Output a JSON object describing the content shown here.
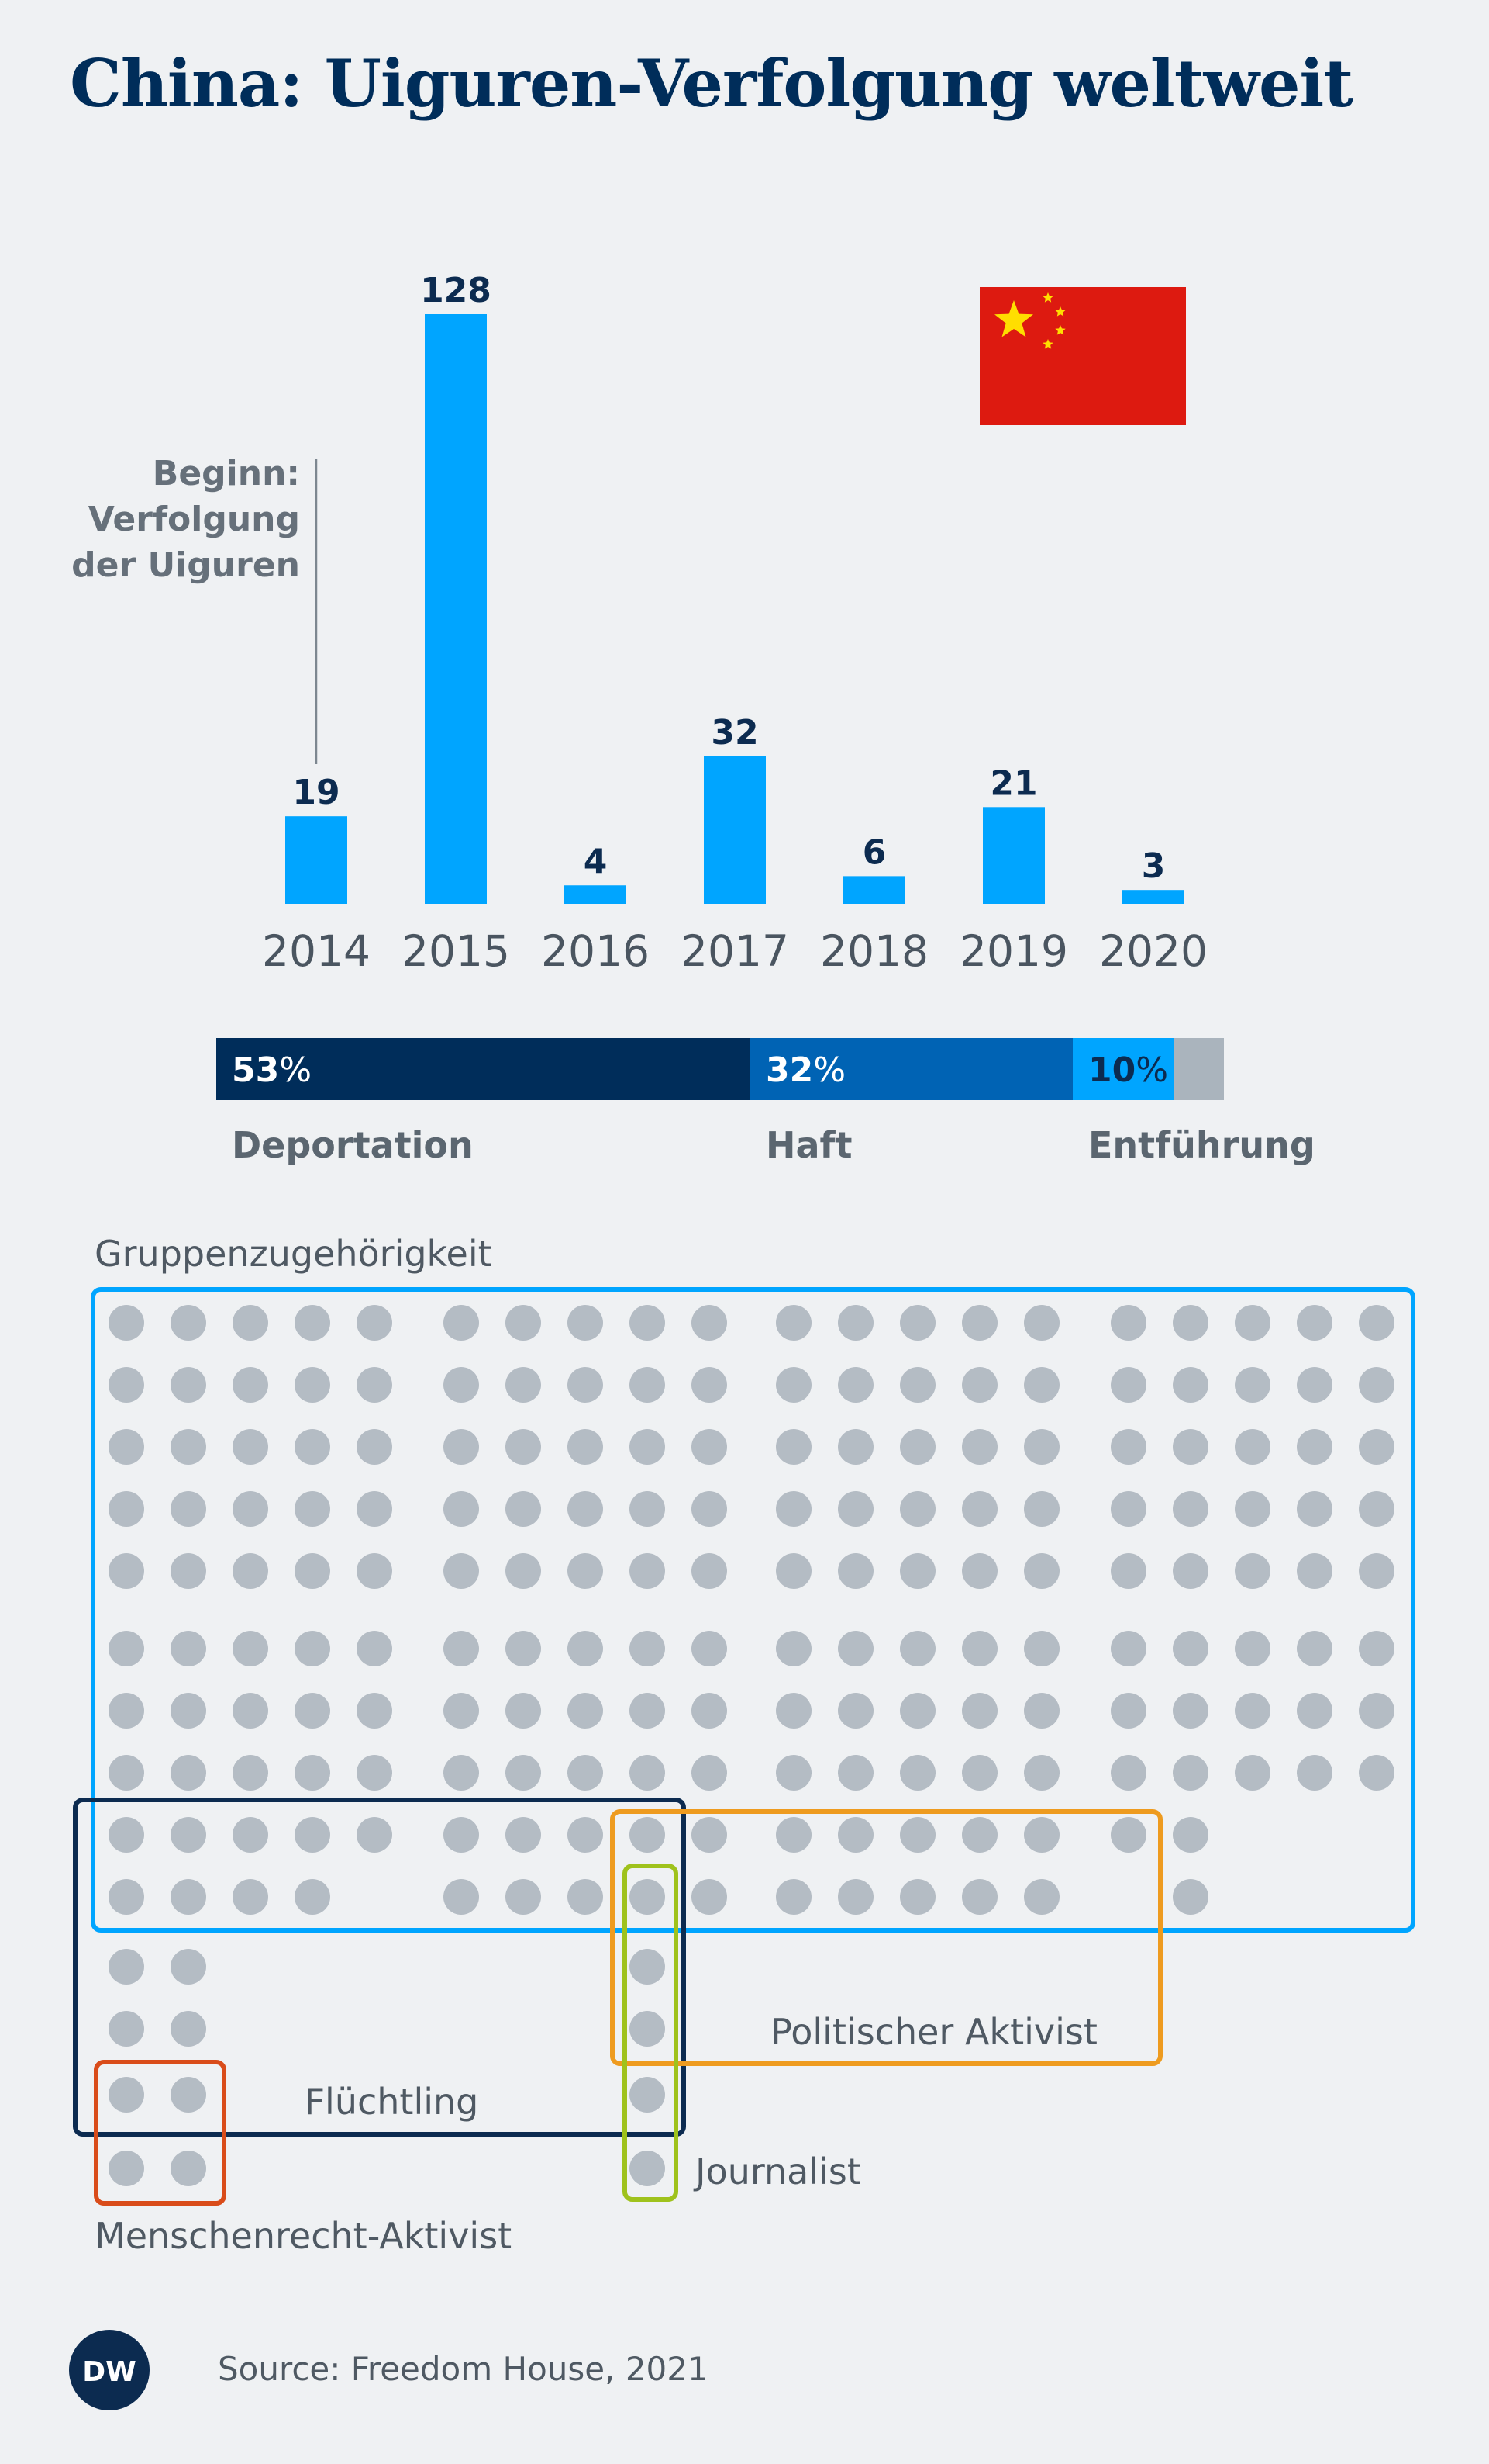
{
  "title": "China: Uiguren-Verfolgung weltweit",
  "annotation": [
    "Beginn:",
    "Verfolgung",
    "der Uiguren"
  ],
  "flag_icon": "china-flag-icon",
  "colors": {
    "bar": "#00a5ff",
    "deportation": "#002d5a",
    "haft": "#0063b4",
    "entfuehrung": "#00a5ff",
    "rest": "#aab4bd",
    "dot": "#b4bcc4",
    "box_gruppen": "#00a5ff",
    "box_fluechtling": "#0c2b50",
    "box_politisch": "#ee9b1f",
    "box_journalist": "#9fc21c",
    "box_menschenrecht": "#d94c1a"
  },
  "chart_data": [
    {
      "type": "bar",
      "categories": [
        "2014",
        "2015",
        "2016",
        "2017",
        "2018",
        "2019",
        "2020"
      ],
      "values": [
        19,
        128,
        4,
        32,
        6,
        21,
        3
      ]
    },
    {
      "type": "bar",
      "stacked": true,
      "segments": [
        {
          "name": "Deportation",
          "percent": 53,
          "label": "53"
        },
        {
          "name": "Haft",
          "percent": 32,
          "label": "32"
        },
        {
          "name": "Entführung",
          "percent": 10,
          "label": "10"
        },
        {
          "name": "",
          "percent": 5,
          "label": ""
        }
      ],
      "unit": "%"
    },
    {
      "type": "dot-matrix",
      "categories": [
        {
          "name": "Gruppenzugehörigkeit",
          "color": "#00a5ff"
        },
        {
          "name": "Flüchtling",
          "color": "#0c2b50"
        },
        {
          "name": "Politischer Aktivist",
          "color": "#ee9b1f"
        },
        {
          "name": "Journalist",
          "color": "#9fc21c"
        },
        {
          "name": "Menschenrecht-Aktivist",
          "color": "#d94c1a"
        }
      ],
      "total_dots": 213
    }
  ],
  "source": "Source: Freedom House, 2021",
  "logo_text": "DW"
}
